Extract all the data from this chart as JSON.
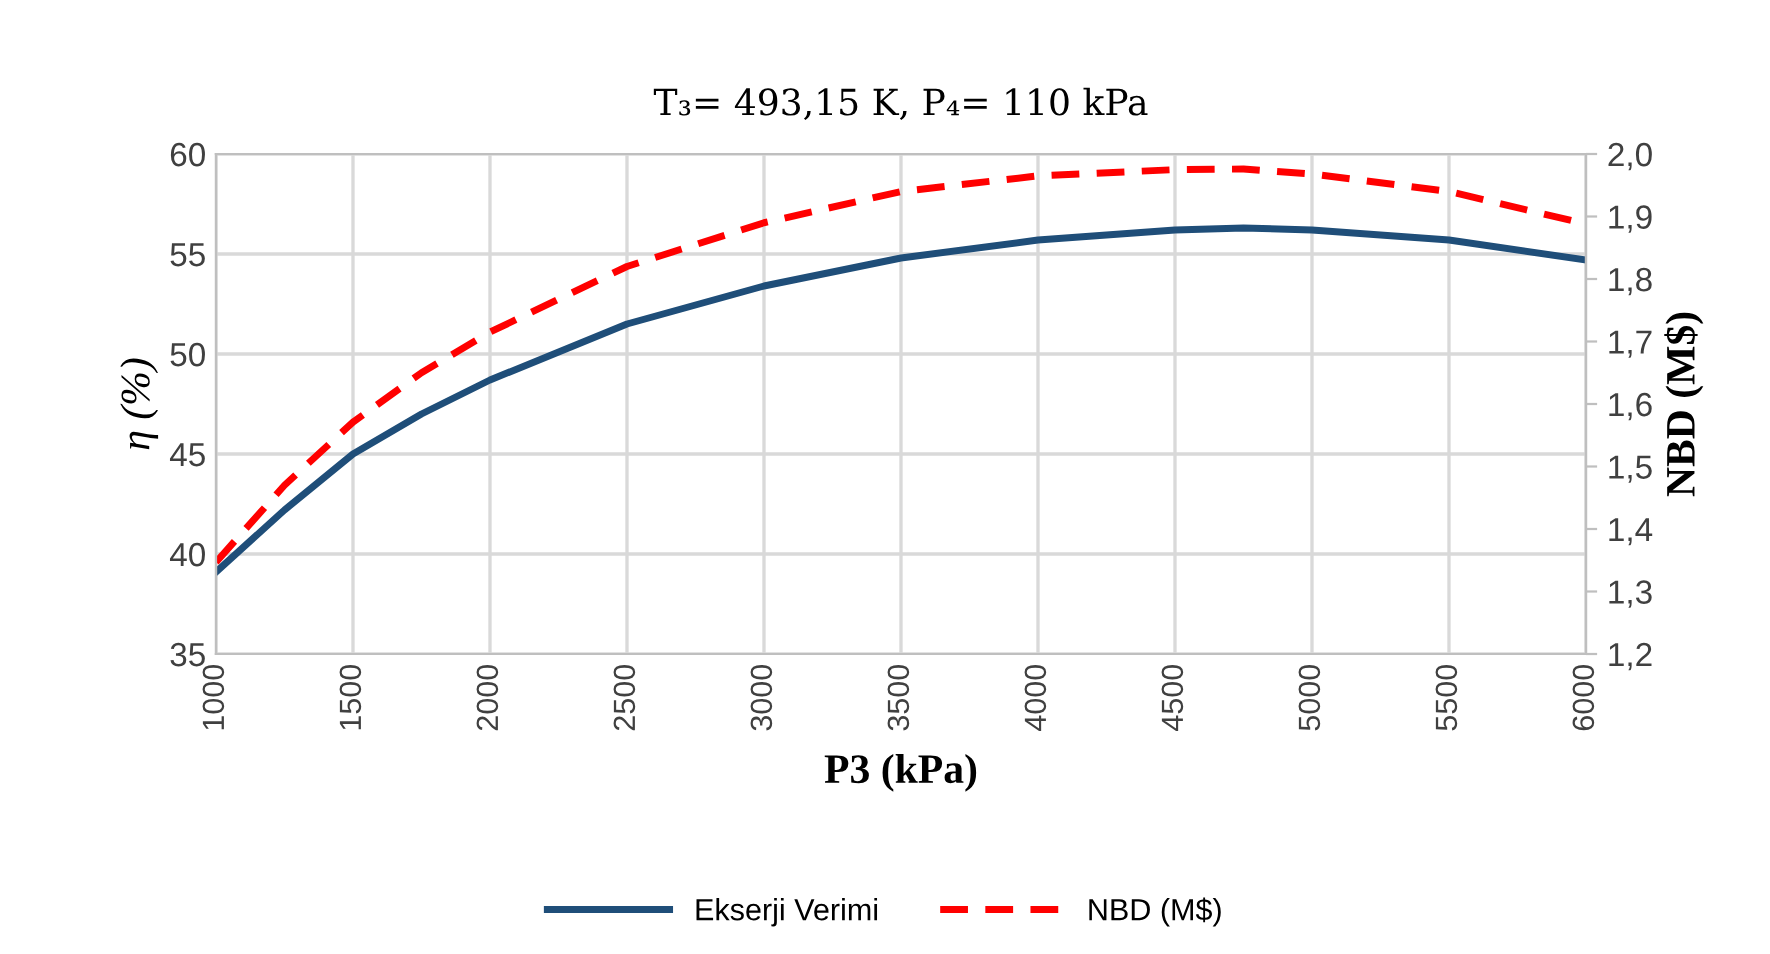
{
  "chart_data": {
    "type": "line",
    "title": "T₃= 493,15 K, P₄= 110 kPa",
    "xlabel": "P3 (kPa)",
    "ylabel": "η (%)",
    "y2label": "NBD (M$)",
    "x": [
      1000,
      1250,
      1500,
      1750,
      2000,
      2500,
      3000,
      3500,
      4000,
      4500,
      4750,
      5000,
      5500,
      6000
    ],
    "series": [
      {
        "name": "Ekserji Verimi",
        "color": "#1f4e79",
        "line_style": "solid",
        "values": [
          39.1,
          42.2,
          45.0,
          47.0,
          48.7,
          51.5,
          53.4,
          54.8,
          55.7,
          56.2,
          56.3,
          56.2,
          55.7,
          54.7
        ]
      },
      {
        "name": "NBD (M$)",
        "color": "#ff0000",
        "line_style": "dashed",
        "axis": "y2",
        "values": [
          1.347,
          1.47,
          1.571,
          1.65,
          1.715,
          1.82,
          1.89,
          1.94,
          1.965,
          1.975,
          1.976,
          1.968,
          1.94,
          1.888
        ]
      }
    ],
    "xlim": [
      1000,
      6000
    ],
    "xticks": [
      1000,
      1500,
      2000,
      2500,
      3000,
      3500,
      4000,
      4500,
      5000,
      5500,
      6000
    ],
    "ylim": [
      35,
      60
    ],
    "yticks": [
      35,
      40,
      45,
      50,
      55,
      60
    ],
    "y2lim": [
      1.2,
      2.0
    ],
    "y2ticks": [
      {
        "value": 1.2,
        "label": "1,2"
      },
      {
        "value": 1.3,
        "label": "1,3"
      },
      {
        "value": 1.4,
        "label": "1,4"
      },
      {
        "value": 1.5,
        "label": "1,5"
      },
      {
        "value": 1.6,
        "label": "1,6"
      },
      {
        "value": 1.7,
        "label": "1,7"
      },
      {
        "value": 1.8,
        "label": "1,8"
      },
      {
        "value": 1.9,
        "label": "1,9"
      },
      {
        "value": 2.0,
        "label": "2,0"
      }
    ],
    "grid": true,
    "legend": "bottom",
    "marker": "none"
  }
}
